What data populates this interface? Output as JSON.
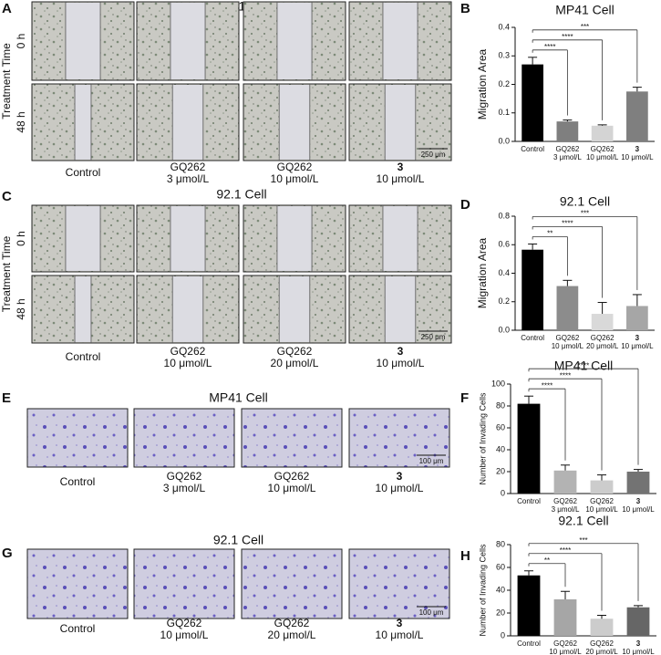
{
  "figure": {
    "panels": [
      {
        "letter": "A",
        "title": "MP41 Cell",
        "row_axis": "Treatment Time",
        "rows": [
          "0 h",
          "48 h"
        ],
        "scale_bar": "250 μm",
        "conditions": [
          [
            "Control"
          ],
          [
            "GQ262",
            "3 μmol/L"
          ],
          [
            "GQ262",
            "10 μmol/L"
          ],
          [
            "3",
            "10 μmol/L"
          ]
        ]
      },
      {
        "letter": "C",
        "title": "92.1 Cell",
        "row_axis": "Treatment Time",
        "rows": [
          "0 h",
          "48 h"
        ],
        "scale_bar": "250 μm",
        "conditions": [
          [
            "Control"
          ],
          [
            "GQ262",
            "10 μmol/L"
          ],
          [
            "GQ262",
            "20 μmol/L"
          ],
          [
            "3",
            "10 μmol/L"
          ]
        ]
      },
      {
        "letter": "E",
        "title": "MP41 Cell",
        "scale_bar": "100 μm",
        "conditions": [
          [
            "Control"
          ],
          [
            "GQ262",
            "3 μmol/L"
          ],
          [
            "GQ262",
            "10 μmol/L"
          ],
          [
            "3",
            "10 μmol/L"
          ]
        ]
      },
      {
        "letter": "G",
        "title": "92.1 Cell",
        "scale_bar": "100 μm",
        "conditions": [
          [
            "Control"
          ],
          [
            "GQ262",
            "10 μmol/L"
          ],
          [
            "GQ262",
            "20 μmol/L"
          ],
          [
            "3",
            "10 μmol/L"
          ]
        ]
      }
    ]
  },
  "chart_data": [
    {
      "type": "bar",
      "panel": "B",
      "title": "MP41 Cell",
      "ylabel": "Migration Area",
      "categories": [
        [
          "Control"
        ],
        [
          "GQ262",
          "3 μmol/L"
        ],
        [
          "GQ262",
          "10 μmol/L"
        ],
        [
          "3",
          "10 μmol/L"
        ]
      ],
      "values": [
        0.27,
        0.07,
        0.055,
        0.175
      ],
      "errors": [
        0.025,
        0.005,
        0.003,
        0.015
      ],
      "colors": [
        "#000000",
        "#7f7f7f",
        "#d4d4d4",
        "#7f7f7f"
      ],
      "significance": [
        "****",
        "****",
        "***"
      ],
      "ylim": [
        0,
        0.4
      ],
      "yticks": [
        {
          "value": 0,
          "label": "0.0"
        },
        0.1,
        0.2,
        0.3,
        0.4
      ]
    },
    {
      "type": "bar",
      "panel": "D",
      "title": "92.1 Cell",
      "ylabel": "Migration Area",
      "categories": [
        [
          "Control"
        ],
        [
          "GQ262",
          "10 μmol/L"
        ],
        [
          "GQ262",
          "20 μmol/L"
        ],
        [
          "3",
          "10 μmol/L"
        ]
      ],
      "values": [
        0.565,
        0.31,
        0.115,
        0.17
      ],
      "errors": [
        0.04,
        0.04,
        0.08,
        0.08
      ],
      "colors": [
        "#000000",
        "#8c8c8c",
        "#d9d9d9",
        "#a6a6a6"
      ],
      "significance": [
        "**",
        "****",
        "***"
      ],
      "ylim": [
        0,
        0.8
      ],
      "yticks": [
        {
          "value": 0,
          "label": "0.0"
        },
        0.2,
        0.4,
        0.6,
        0.8
      ]
    },
    {
      "type": "bar",
      "panel": "F",
      "title": "MP41 Cell",
      "ylabel": "Number of Invading Cells",
      "categories": [
        [
          "Control"
        ],
        [
          "GQ262",
          "3 μmol/L"
        ],
        [
          "GQ262",
          "10 μmol/L"
        ],
        [
          "3",
          "10 μmol/L"
        ]
      ],
      "values": [
        82,
        21,
        12,
        20
      ],
      "errors": [
        7,
        5,
        5,
        2
      ],
      "colors": [
        "#000000",
        "#b3b3b3",
        "#cccccc",
        "#737373"
      ],
      "significance": [
        "****",
        "****",
        "****"
      ],
      "ylim": [
        0,
        100
      ],
      "yticks": [
        0,
        20,
        40,
        60,
        80,
        100
      ]
    },
    {
      "type": "bar",
      "panel": "H",
      "title": "92.1 Cell",
      "ylabel": "Number of Invading Cells",
      "categories": [
        [
          "Control"
        ],
        [
          "GQ262",
          "10 μmol/L"
        ],
        [
          "GQ262",
          "20 μmol/L"
        ],
        [
          "3",
          "10 μmol/L"
        ]
      ],
      "values": [
        53,
        32,
        15,
        25
      ],
      "errors": [
        4,
        7,
        3,
        1.5
      ],
      "colors": [
        "#000000",
        "#a6a6a6",
        "#cccccc",
        "#666666"
      ],
      "significance": [
        "**",
        "****",
        "***"
      ],
      "ylim": [
        0,
        80
      ],
      "yticks": [
        0,
        20,
        40,
        60,
        80
      ]
    }
  ]
}
